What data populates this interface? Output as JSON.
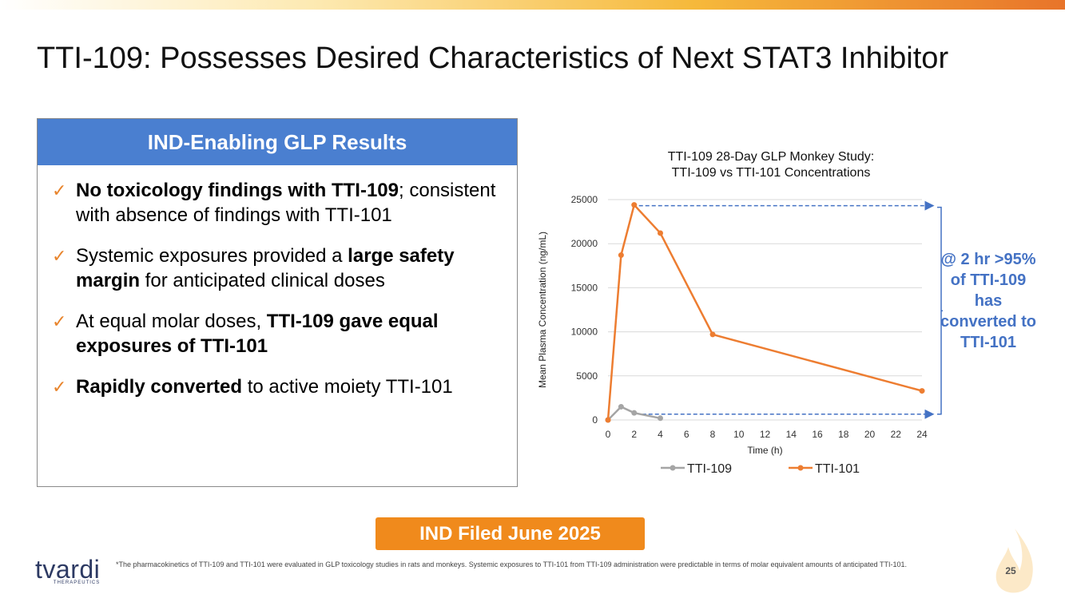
{
  "title": "TTI-109: Possesses Desired Characteristics of Next STAT3 Inhibitor",
  "panel": {
    "header": "IND-Enabling GLP Results",
    "bullets": [
      [
        {
          "t": "No toxicology findings with TTI-109",
          "b": true
        },
        {
          "t": "; consistent with absence of findings with TTI-101",
          "b": false
        }
      ],
      [
        {
          "t": "Systemic exposures provided a ",
          "b": false
        },
        {
          "t": "large safety margin",
          "b": true
        },
        {
          "t": " for anticipated clinical doses",
          "b": false
        }
      ],
      [
        {
          "t": "At equal molar doses, ",
          "b": false
        },
        {
          "t": "TTI-109 gave equal exposures of TTI-101",
          "b": true
        }
      ],
      [
        {
          "t": "Rapidly converted",
          "b": true
        },
        {
          "t": " to active moiety TTI-101",
          "b": false
        }
      ]
    ]
  },
  "chart_data": {
    "type": "line",
    "title": "TTI-109 28-Day GLP Monkey Study:\nTTI-109 vs TTI-101 Concentrations",
    "xlabel": "Time (h)",
    "ylabel": "Mean Plasma Concentration (ng/mL)",
    "xlim": [
      0,
      24
    ],
    "ylim": [
      0,
      25000
    ],
    "xticks": [
      0,
      2,
      4,
      6,
      8,
      10,
      12,
      14,
      16,
      18,
      20,
      22,
      24
    ],
    "yticks": [
      0,
      5000,
      10000,
      15000,
      20000,
      25000
    ],
    "series": [
      {
        "name": "TTI-109",
        "color": "#a5a5a5",
        "x": [
          0,
          1,
          2,
          4
        ],
        "y": [
          0,
          1500,
          800,
          200
        ]
      },
      {
        "name": "TTI-101",
        "color": "#ed7d31",
        "x": [
          0,
          1,
          2,
          4,
          8,
          24
        ],
        "y": [
          0,
          18700,
          24400,
          21200,
          9700,
          3300
        ]
      }
    ],
    "legend_position": "bottom",
    "annotation_color": "#4472c4"
  },
  "callout": "@ 2 hr >95% of TTI-109 has converted to TTI-101",
  "ind_button": "IND Filed June 2025",
  "logo": {
    "word": "tvardi",
    "sub": "THERAPEUTICS"
  },
  "footnote": "*The pharmacokinetics of TTI-109 and TTI-101 were evaluated in GLP toxicology studies in rats and monkeys. Systemic exposures to TTI-101 from TTI-109 administration were predictable in terms of molar equivalent amounts of anticipated TTI-101.",
  "page_number": "25"
}
